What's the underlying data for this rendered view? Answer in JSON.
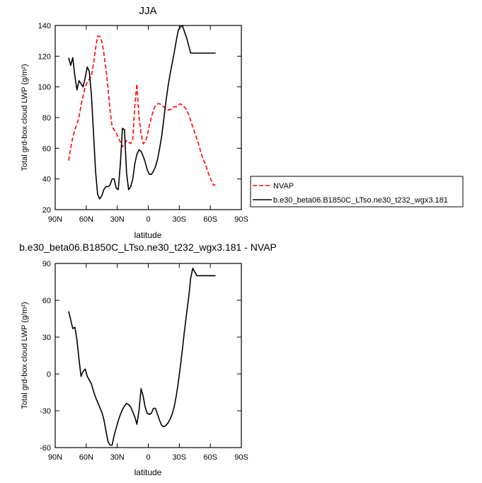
{
  "chart_data": [
    {
      "type": "line",
      "title": "JJA",
      "xlabel": "latitude",
      "ylabel": "Total grd-box cloud LWP (g/m²)",
      "xlim": [
        90,
        -90
      ],
      "ylim": [
        20,
        140
      ],
      "xticks": [
        {
          "v": 90,
          "label": "90N"
        },
        {
          "v": 60,
          "label": "60N"
        },
        {
          "v": 30,
          "label": "30N"
        },
        {
          "v": 0,
          "label": "0"
        },
        {
          "v": -30,
          "label": "30S"
        },
        {
          "v": -60,
          "label": "60S"
        },
        {
          "v": -90,
          "label": "90S"
        }
      ],
      "yticks": [
        20,
        40,
        60,
        80,
        100,
        120,
        140
      ],
      "legend": {
        "placement": "right"
      },
      "series": [
        {
          "name": "NVAP",
          "color": "#ff0000",
          "dash": "dashed",
          "x": [
            77,
            75,
            73,
            71,
            69,
            67,
            65,
            63,
            61,
            59,
            57,
            55,
            53,
            51,
            49,
            47,
            45,
            43,
            41,
            39,
            37,
            35,
            33,
            31,
            29,
            27,
            25,
            23,
            21,
            19,
            17,
            15,
            13,
            11,
            9,
            7,
            5,
            3,
            1,
            -1,
            -3,
            -5,
            -7,
            -9,
            -11,
            -13,
            -15,
            -17,
            -19,
            -21,
            -23,
            -25,
            -27,
            -29,
            -31,
            -33,
            -35,
            -37,
            -39,
            -41,
            -43,
            -45,
            -47,
            -49,
            -51,
            -53,
            -55,
            -57,
            -59,
            -61,
            -63,
            -65
          ],
          "values": [
            52,
            60,
            67,
            72,
            76,
            80,
            88,
            94,
            100,
            103,
            105,
            107,
            115,
            125,
            133,
            133,
            130,
            122,
            112,
            100,
            85,
            74,
            72,
            70,
            67,
            64,
            61,
            63,
            65,
            64,
            63,
            66,
            88,
            102,
            80,
            70,
            63,
            64,
            68,
            75,
            80,
            85,
            88,
            89,
            89,
            88,
            87,
            86,
            85,
            85,
            86,
            87,
            87,
            88,
            89,
            88,
            87,
            85,
            82,
            78,
            74,
            70,
            66,
            62,
            57,
            53,
            50,
            46,
            42,
            39,
            36,
            36
          ]
        },
        {
          "name": "b.e30_beta06.B1850C_LTso.ne30_t232_wgx3.181",
          "color": "#000000",
          "dash": "solid",
          "x": [
            77,
            75,
            73,
            71,
            69,
            67,
            65,
            63,
            61,
            59,
            57,
            55,
            53,
            51,
            49,
            47,
            45,
            43,
            41,
            39,
            37,
            35,
            33,
            31,
            29,
            27,
            25,
            23,
            21,
            19,
            17,
            15,
            13,
            11,
            9,
            7,
            5,
            3,
            1,
            -1,
            -3,
            -5,
            -7,
            -9,
            -11,
            -13,
            -15,
            -17,
            -19,
            -21,
            -23,
            -25,
            -27,
            -29,
            -31,
            -33,
            -35,
            -37,
            -39,
            -41,
            -43,
            -45,
            -47,
            -49,
            -51,
            -53,
            -55,
            -57,
            -59,
            -61,
            -63,
            -65
          ],
          "values": [
            119,
            114,
            119,
            107,
            98,
            104,
            102,
            100,
            106,
            113,
            110,
            95,
            70,
            45,
            30,
            27,
            29,
            33,
            35,
            35,
            36,
            40,
            40,
            34,
            33,
            50,
            73,
            72,
            44,
            33,
            35,
            40,
            50,
            56,
            59,
            58,
            55,
            51,
            46,
            43,
            43,
            45,
            48,
            53,
            60,
            68,
            79,
            90,
            100,
            108,
            115,
            122,
            130,
            137,
            139,
            140,
            136,
            132,
            127,
            122,
            122,
            122,
            122,
            122,
            122,
            122,
            122,
            122,
            122,
            122,
            122,
            122
          ]
        }
      ]
    },
    {
      "type": "line",
      "title": "b.e30_beta06.B1850C_LTso.ne30_t232_wgx3.181 - NVAP",
      "xlabel": "latitude",
      "ylabel": "Total grd-box cloud LWP (g/m²)",
      "xlim": [
        90,
        -90
      ],
      "ylim": [
        -60,
        90
      ],
      "xticks": [
        {
          "v": 90,
          "label": "90N"
        },
        {
          "v": 60,
          "label": "60N"
        },
        {
          "v": 30,
          "label": "30N"
        },
        {
          "v": 0,
          "label": "0"
        },
        {
          "v": -30,
          "label": "30S"
        },
        {
          "v": -60,
          "label": "60S"
        },
        {
          "v": -90,
          "label": "90S"
        }
      ],
      "yticks": [
        -60,
        -30,
        0,
        30,
        60,
        90
      ],
      "series": [
        {
          "color": "#000000",
          "dash": "solid",
          "x": [
            77,
            75,
            73,
            71,
            69,
            67,
            65,
            63,
            61,
            59,
            57,
            55,
            53,
            51,
            49,
            47,
            45,
            43,
            41,
            39,
            37,
            35,
            33,
            31,
            29,
            27,
            25,
            23,
            21,
            19,
            17,
            15,
            13,
            11,
            9,
            7,
            5,
            3,
            1,
            -1,
            -3,
            -5,
            -7,
            -9,
            -11,
            -13,
            -15,
            -17,
            -19,
            -21,
            -23,
            -25,
            -27,
            -29,
            -31,
            -33,
            -35,
            -37,
            -39,
            -41,
            -43,
            -45,
            -47,
            -49,
            -51,
            -53,
            -55,
            -57,
            -59,
            -61,
            -63,
            -65
          ],
          "values": [
            51,
            44,
            37,
            38,
            28,
            12,
            -2,
            2,
            4,
            -2,
            -5,
            -8,
            -14,
            -19,
            -23,
            -27,
            -31,
            -37,
            -46,
            -55,
            -58,
            -58,
            -50,
            -44,
            -38,
            -33,
            -29,
            -26,
            -24,
            -25,
            -27,
            -31,
            -35,
            -41,
            -30,
            -12,
            -18,
            -27,
            -32,
            -33,
            -32,
            -28,
            -28,
            -33,
            -38,
            -42,
            -43,
            -42,
            -40,
            -37,
            -33,
            -27,
            -18,
            -7,
            6,
            20,
            35,
            49,
            62,
            78,
            86,
            83,
            80,
            80,
            80,
            80,
            80,
            80,
            80,
            80,
            80,
            80
          ]
        }
      ]
    }
  ]
}
